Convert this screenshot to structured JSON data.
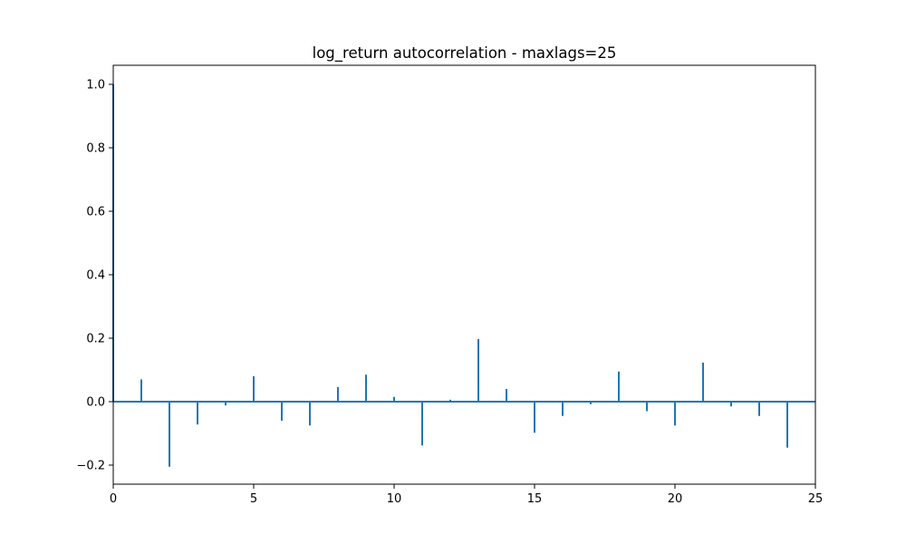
{
  "chart_data": {
    "type": "bar",
    "title": "log_return autocorrelation - maxlags=25",
    "xlabel": "",
    "ylabel": "",
    "xlim": [
      0,
      25
    ],
    "ylim": [
      -0.26,
      1.06
    ],
    "grid": false,
    "x_ticks": [
      0,
      5,
      10,
      15,
      20,
      25
    ],
    "y_ticks": [
      -0.2,
      0.0,
      0.2,
      0.4,
      0.6,
      0.8,
      1.0
    ],
    "x_tick_labels": [
      "0",
      "5",
      "10",
      "15",
      "20",
      "25"
    ],
    "y_tick_labels": [
      "−0.2",
      "0.0",
      "0.2",
      "0.4",
      "0.6",
      "0.8",
      "1.0"
    ],
    "series": [
      {
        "x": [
          0,
          1,
          2,
          3,
          4,
          5,
          6,
          7,
          8,
          9,
          10,
          11,
          12,
          13,
          14,
          15,
          16,
          17,
          18,
          19,
          20,
          21,
          22,
          23,
          24,
          25
        ],
        "values": [
          1.0,
          0.07,
          -0.205,
          -0.072,
          -0.012,
          0.08,
          -0.06,
          -0.075,
          0.046,
          0.085,
          0.015,
          -0.138,
          0.006,
          0.197,
          0.04,
          -0.098,
          -0.045,
          -0.008,
          0.095,
          -0.03,
          -0.075,
          0.123,
          -0.015,
          -0.045,
          -0.145,
          0.0
        ]
      }
    ],
    "colors": {
      "stem": "#1f77b4",
      "axes": "#000000"
    }
  }
}
